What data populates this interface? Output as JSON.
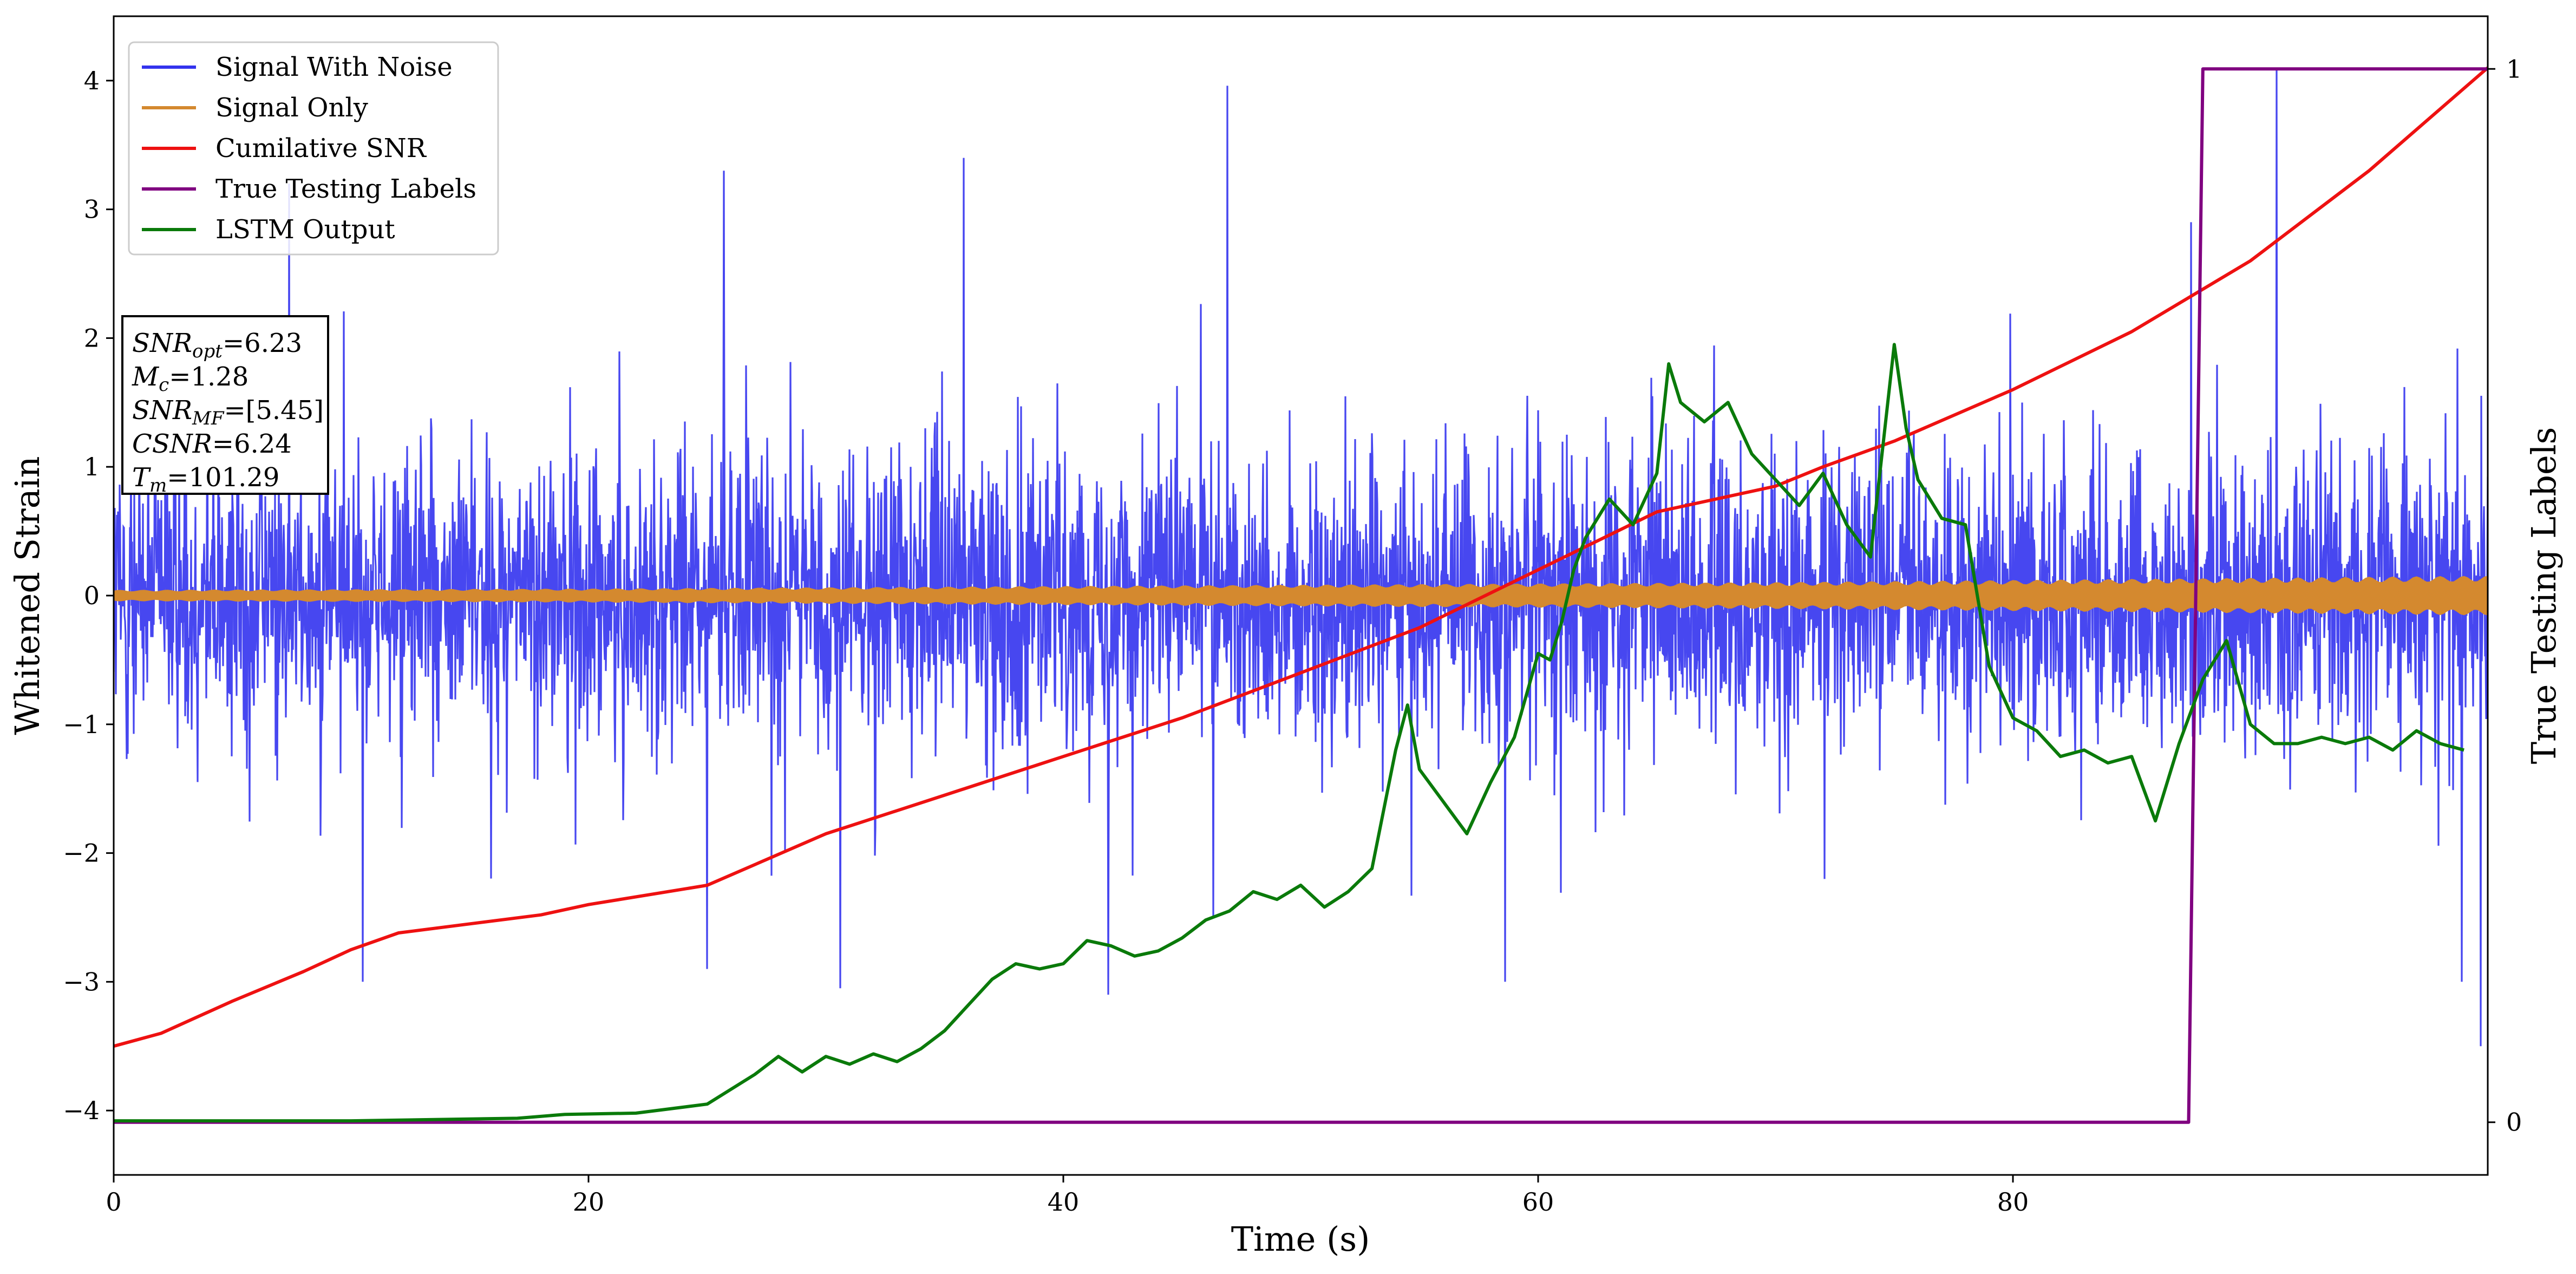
{
  "chart_data": {
    "type": "line",
    "xlabel": "Time (s)",
    "ylabel": "Whitened Strain",
    "y2label": "True Testing Labels",
    "xlim": [
      0,
      100
    ],
    "ylim": [
      -4.5,
      4.5
    ],
    "y2lim": [
      -0.05,
      1.05
    ],
    "xticks": [
      0,
      20,
      40,
      60,
      80
    ],
    "yticks": [
      -4,
      -3,
      -2,
      -1,
      0,
      1,
      2,
      3,
      4
    ],
    "y2ticks": [
      0,
      1
    ],
    "grid": false,
    "legend_position": "top-left",
    "colors": {
      "signal_with_noise": "#3333ee",
      "signal_only": "#d4892f",
      "cumulative_snr": "#ee1111",
      "true_labels": "#800080",
      "lstm_output": "#0a7a0a"
    },
    "series": [
      {
        "name": "Signal With Noise",
        "axis": "left",
        "description_values": {
          "typical_envelope": [
            -1.5,
            1.5
          ],
          "notable_peaks": [
            [
              46.9,
              3.96
            ],
            [
              91.1,
              4.1
            ],
            [
              7.4,
              3.2
            ],
            [
              25.7,
              3.3
            ],
            [
              35.8,
              3.4
            ],
            [
              87.5,
              2.9
            ]
          ],
          "notable_troughs": [
            [
              10.5,
              -3.0
            ],
            [
              41.9,
              -3.1
            ],
            [
              30.6,
              -3.05
            ],
            [
              99.7,
              -3.5
            ],
            [
              98.9,
              -3.0
            ],
            [
              58.6,
              -3.0
            ]
          ]
        }
      },
      {
        "name": "Signal Only",
        "axis": "left",
        "amplitude": [
          [
            0,
            0.04
          ],
          [
            20,
            0.05
          ],
          [
            50,
            0.08
          ],
          [
            70,
            0.1
          ],
          [
            100,
            0.15
          ]
        ]
      },
      {
        "name": "Cumilative SNR",
        "axis": "left",
        "x": [
          0,
          2,
          5,
          8,
          10,
          12,
          15,
          18,
          20,
          25,
          30,
          35,
          40,
          45,
          50,
          55,
          60,
          65,
          70,
          72,
          75,
          80,
          85,
          90,
          95,
          100
        ],
        "y": [
          -3.5,
          -3.4,
          -3.15,
          -2.92,
          -2.75,
          -2.62,
          -2.55,
          -2.48,
          -2.4,
          -2.25,
          -1.85,
          -1.55,
          -1.25,
          -0.95,
          -0.6,
          -0.25,
          0.2,
          0.65,
          0.85,
          1.0,
          1.2,
          1.6,
          2.05,
          2.6,
          3.3,
          4.1
        ]
      },
      {
        "name": "True Testing Labels",
        "axis": "right",
        "x": [
          0,
          87.4,
          88.0,
          100
        ],
        "y": [
          0,
          0,
          1,
          1
        ]
      },
      {
        "name": "LSTM Output",
        "axis": "left",
        "x": [
          0,
          10,
          17,
          19,
          22,
          25,
          27,
          28,
          29,
          30,
          31,
          32,
          33,
          34,
          35,
          36,
          37,
          38,
          39,
          40,
          41,
          42,
          43,
          44,
          45,
          46,
          47,
          48,
          49,
          50,
          51,
          52,
          53,
          54,
          54.5,
          55,
          56,
          57,
          58,
          59,
          60,
          60.5,
          61,
          61.5,
          62,
          63,
          64,
          65,
          65.5,
          66,
          67,
          68,
          69,
          70,
          71,
          72,
          73,
          74,
          75,
          75.5,
          76,
          77,
          78,
          79,
          80,
          81,
          82,
          83,
          84,
          85,
          86,
          87,
          88,
          89,
          90,
          91,
          92,
          93,
          94,
          95,
          96,
          97,
          98,
          99
        ],
        "y": [
          -4.08,
          -4.08,
          -4.06,
          -4.03,
          -4.02,
          -3.95,
          -3.72,
          -3.58,
          -3.7,
          -3.58,
          -3.64,
          -3.56,
          -3.62,
          -3.52,
          -3.38,
          -3.18,
          -2.98,
          -2.86,
          -2.9,
          -2.86,
          -2.68,
          -2.72,
          -2.8,
          -2.76,
          -2.66,
          -2.52,
          -2.45,
          -2.3,
          -2.36,
          -2.25,
          -2.42,
          -2.3,
          -2.12,
          -1.2,
          -0.85,
          -1.35,
          -1.6,
          -1.85,
          -1.45,
          -1.1,
          -0.45,
          -0.5,
          -0.2,
          0.2,
          0.45,
          0.75,
          0.55,
          0.95,
          1.8,
          1.5,
          1.35,
          1.5,
          1.1,
          0.9,
          0.7,
          0.95,
          0.55,
          0.3,
          1.95,
          1.3,
          0.9,
          0.6,
          0.55,
          -0.55,
          -0.95,
          -1.05,
          -1.25,
          -1.2,
          -1.3,
          -1.25,
          -1.75,
          -1.15,
          -0.65,
          -0.35,
          -1.0,
          -1.15,
          -1.15,
          -1.1,
          -1.15,
          -1.1,
          -1.2,
          -1.05,
          -1.15,
          -1.2
        ]
      }
    ],
    "annotations": {
      "info_box": [
        {
          "main": "SNR",
          "sub": "opt",
          "value": "=6.23"
        },
        {
          "main": "M",
          "sub": "c",
          "value": "=1.28"
        },
        {
          "main": "SNR",
          "sub": "MF",
          "value": "=[5.45]"
        },
        {
          "main": "CSNR",
          "sub": "",
          "value": "=6.24"
        },
        {
          "main": "T",
          "sub": "m",
          "value": "=101.29"
        }
      ]
    }
  }
}
